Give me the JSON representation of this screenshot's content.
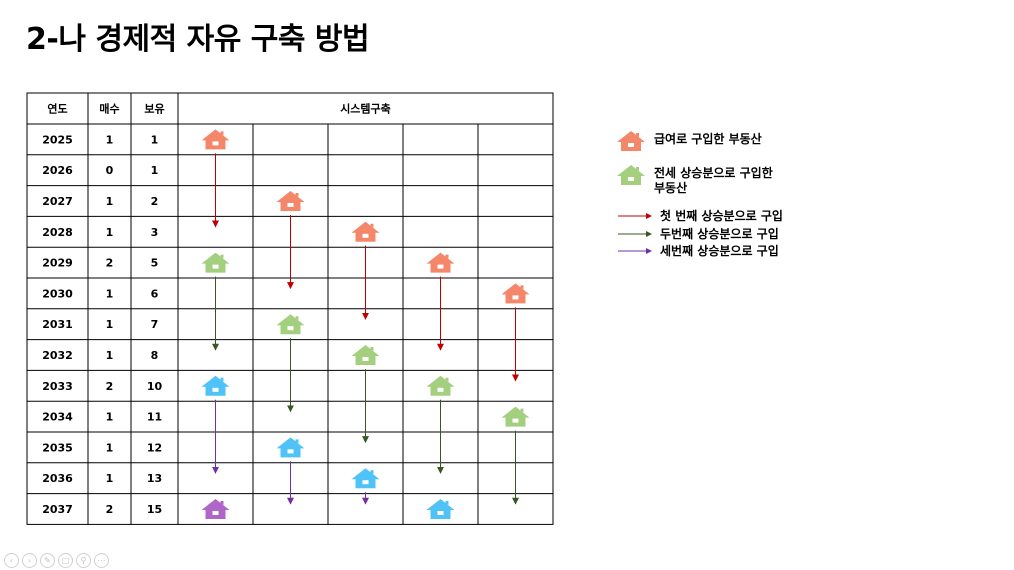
{
  "page": {
    "title": "2-나  경제적 자유 구축 방법"
  },
  "table": {
    "headers": [
      "연도",
      "매수",
      "보유",
      "시스템구축"
    ],
    "rows": [
      {
        "year": "2025",
        "buy": "1",
        "hold": "1"
      },
      {
        "year": "2026",
        "buy": "0",
        "hold": "1"
      },
      {
        "year": "2027",
        "buy": "1",
        "hold": "2"
      },
      {
        "year": "2028",
        "buy": "1",
        "hold": "3"
      },
      {
        "year": "2029",
        "buy": "2",
        "hold": "5"
      },
      {
        "year": "2030",
        "buy": "1",
        "hold": "6"
      },
      {
        "year": "2031",
        "buy": "1",
        "hold": "7"
      },
      {
        "year": "2032",
        "buy": "1",
        "hold": "8"
      },
      {
        "year": "2033",
        "buy": "2",
        "hold": "10"
      },
      {
        "year": "2034",
        "buy": "1",
        "hold": "11"
      },
      {
        "year": "2035",
        "buy": "1",
        "hold": "12"
      },
      {
        "year": "2036",
        "buy": "1",
        "hold": "13"
      },
      {
        "year": "2037",
        "buy": "2",
        "hold": "15"
      }
    ],
    "houses": [
      {
        "row": 0,
        "col": 0,
        "kind": "salary"
      },
      {
        "row": 2,
        "col": 1,
        "kind": "salary"
      },
      {
        "row": 3,
        "col": 2,
        "kind": "salary"
      },
      {
        "row": 4,
        "col": 0,
        "kind": "jeonse"
      },
      {
        "row": 4,
        "col": 3,
        "kind": "salary"
      },
      {
        "row": 5,
        "col": 4,
        "kind": "salary"
      },
      {
        "row": 6,
        "col": 1,
        "kind": "jeonse"
      },
      {
        "row": 7,
        "col": 2,
        "kind": "jeonse"
      },
      {
        "row": 8,
        "col": 0,
        "kind": "blue"
      },
      {
        "row": 8,
        "col": 3,
        "kind": "jeonse"
      },
      {
        "row": 9,
        "col": 4,
        "kind": "jeonse"
      },
      {
        "row": 10,
        "col": 1,
        "kind": "blue"
      },
      {
        "row": 11,
        "col": 2,
        "kind": "blue"
      },
      {
        "row": 12,
        "col": 0,
        "kind": "purple"
      },
      {
        "row": 12,
        "col": 3,
        "kind": "blue"
      }
    ],
    "arrows": [
      {
        "col": 0,
        "from": 0,
        "to": 3,
        "kind": "first"
      },
      {
        "col": 1,
        "from": 2,
        "to": 5,
        "kind": "first"
      },
      {
        "col": 2,
        "from": 3,
        "to": 6,
        "kind": "first"
      },
      {
        "col": 3,
        "from": 4,
        "to": 7,
        "kind": "first"
      },
      {
        "col": 4,
        "from": 5,
        "to": 8,
        "kind": "first"
      },
      {
        "col": 0,
        "from": 4,
        "to": 7,
        "kind": "second"
      },
      {
        "col": 1,
        "from": 6,
        "to": 9,
        "kind": "second"
      },
      {
        "col": 2,
        "from": 7,
        "to": 10,
        "kind": "second"
      },
      {
        "col": 3,
        "from": 8,
        "to": 11,
        "kind": "second"
      },
      {
        "col": 4,
        "from": 9,
        "to": 12,
        "kind": "second"
      },
      {
        "col": 0,
        "from": 8,
        "to": 11,
        "kind": "third"
      },
      {
        "col": 1,
        "from": 10,
        "to": 12,
        "kind": "third"
      },
      {
        "col": 2,
        "from": 11,
        "to": 12,
        "kind": "third"
      }
    ]
  },
  "colors": {
    "salary": "#f4876a",
    "jeonse": "#a3cf7f",
    "blue": "#4fc3f7",
    "purple": "#b065c9",
    "first": "#c00000",
    "second": "#375623",
    "third": "#7030a0",
    "grid": "#000000"
  },
  "legend": {
    "items": [
      {
        "kind": "salary",
        "label": "급여로 구입한 부동산"
      },
      {
        "kind": "jeonse",
        "label": "전세 상승분으로 구입한\n부동산"
      }
    ],
    "arrows": [
      {
        "kind": "first",
        "label": "첫 번째 상승분으로 구입"
      },
      {
        "kind": "second",
        "label": "두번째 상승분으로 구입"
      },
      {
        "kind": "third",
        "label": "세번째 상승분으로 구입"
      }
    ]
  },
  "toolbar": [
    "back-icon",
    "forward-icon",
    "pen-icon",
    "copy-icon",
    "zoom-icon",
    "more-icon"
  ]
}
